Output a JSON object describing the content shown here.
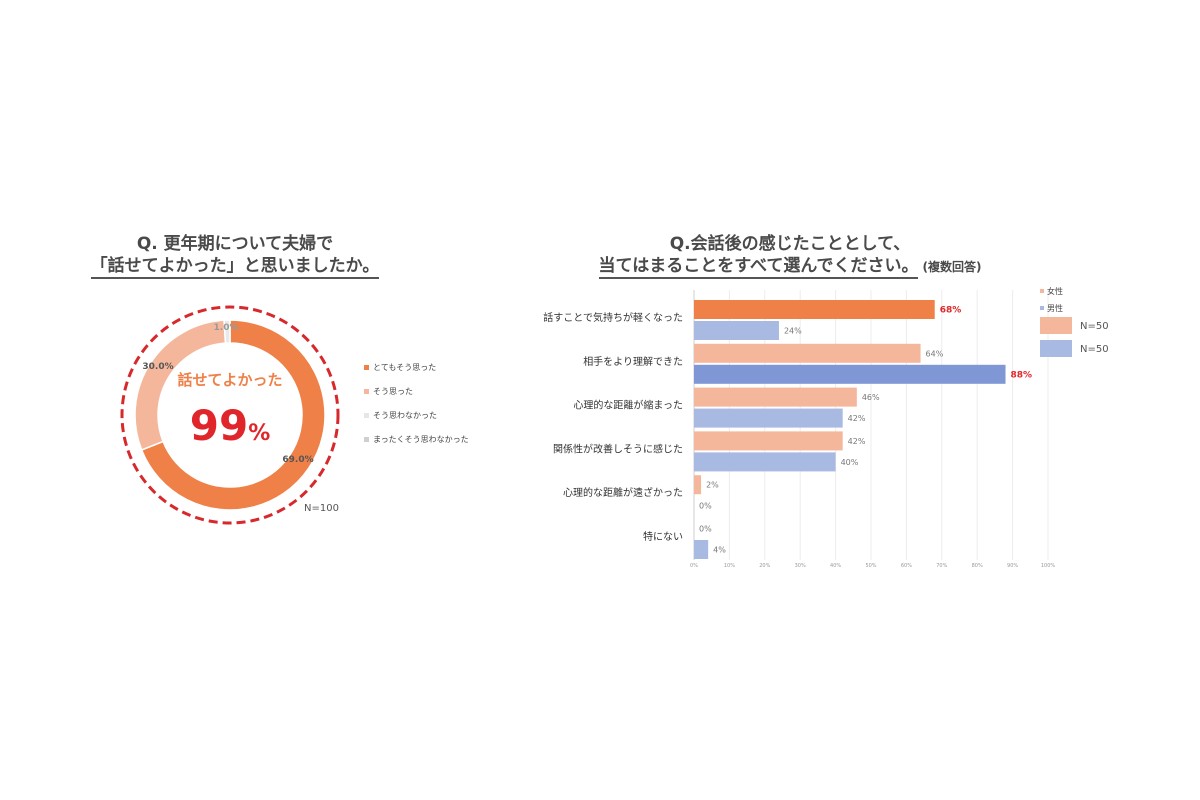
{
  "left": {
    "title_line1": "Q. 更年期について夫婦で",
    "title_line2": "「話せてよかった」と思いましたか。",
    "center_label": "話せてよかった",
    "center_value": "99",
    "center_unit": "%",
    "n_label": "N=100",
    "legend": [
      "とてもそう思った",
      "そう思った",
      "そう思わなかった",
      "まったくそう思わなかった"
    ]
  },
  "right": {
    "title_line1": "Q.会話後の感じたこととして、",
    "title_line2": "当てはまることをすべて選んでください。",
    "title_note": "(複数回答)",
    "legend_female": "女性",
    "legend_male": "男性",
    "n_female": "N=50",
    "n_male": "N=50"
  },
  "colors": {
    "dark_orange": "#ef8148",
    "light_orange": "#f5b79c",
    "light_blue": "#a8b9e2",
    "blue": "#7f97d4",
    "red": "#e0262a",
    "dash_red": "#d7282c"
  },
  "chart_data": [
    {
      "type": "pie",
      "labels": [
        "とてもそう思った",
        "そう思った",
        "そう思わなかった",
        "まったくそう思わなかった"
      ],
      "values": [
        69.0,
        30.0,
        1.0,
        0
      ],
      "value_labels": [
        "69.0%",
        "30.0%",
        "1.0%",
        ""
      ]
    },
    {
      "type": "bar",
      "orientation": "horizontal",
      "categories": [
        "話すことで気持ちが軽くなった",
        "相手をより理解できた",
        "心理的な距離が縮まった",
        "関係性が改善しそうに感じた",
        "心理的な距離が遠ざかった",
        "特にない"
      ],
      "series": [
        {
          "name": "女性",
          "values": [
            68,
            64,
            46,
            42,
            2,
            0
          ]
        },
        {
          "name": "男性",
          "values": [
            24,
            88,
            42,
            40,
            0,
            4
          ]
        }
      ],
      "xlim": [
        0,
        100
      ],
      "xticks": [
        "0%",
        "10%",
        "20%",
        "30%",
        "40%",
        "50%",
        "60%",
        "70%",
        "80%",
        "90%",
        "100%"
      ]
    }
  ]
}
